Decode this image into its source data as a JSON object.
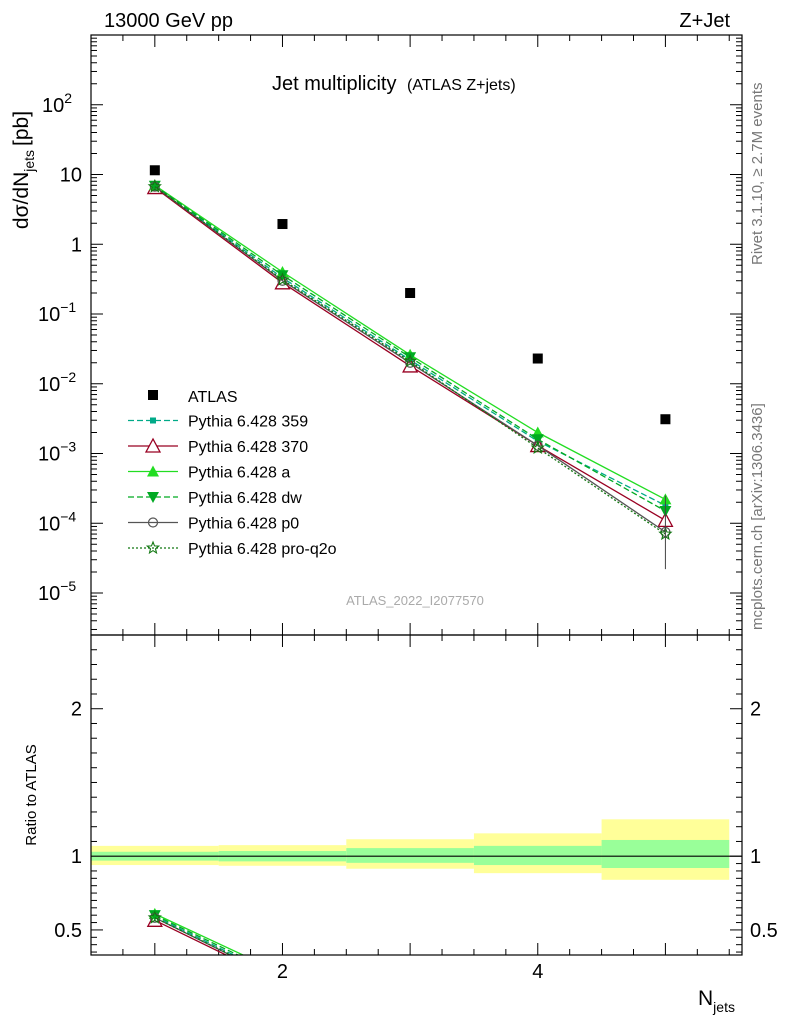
{
  "header": {
    "left": "13000 GeV pp",
    "right": "Z+Jet"
  },
  "side_text": {
    "rivet": "Rivet 3.1.10, ≥ 2.7M events",
    "mcplots": "mcplots.cern.ch [arXiv:1306.3436]"
  },
  "chart_data": {
    "type": "scatter",
    "title": "Jet multiplicity",
    "subtitle": "(ATLAS Z+jets)",
    "analysis_id": "ATLAS_2022_I2077570",
    "xlabel": "N",
    "xlabel_sub": "jets",
    "ylabel": "dσ/dN",
    "ylabel_sub": "jets",
    "ylabel_unit": "[pb]",
    "ratio_ylabel": "Ratio to ATLAS",
    "xlim": [
      0.5,
      5.6
    ],
    "ylim": [
      2.5e-06,
      1000
    ],
    "y_scale": "log",
    "ratio_ylim": [
      0.33,
      2.5
    ],
    "x_ticks": [
      2,
      4
    ],
    "x_tick_labels": [
      "2",
      "4"
    ],
    "y_tick_labels": [
      {
        "value": 100,
        "mant": "10",
        "exp": "2"
      },
      {
        "value": 10,
        "mant": "10",
        "exp": ""
      },
      {
        "value": 1,
        "mant": "1",
        "exp": ""
      },
      {
        "value": 0.1,
        "mant": "10",
        "exp": "−1"
      },
      {
        "value": 0.01,
        "mant": "10",
        "exp": "−2"
      },
      {
        "value": 0.001,
        "mant": "10",
        "exp": "−3"
      },
      {
        "value": 0.0001,
        "mant": "10",
        "exp": "−4"
      },
      {
        "value": 1e-05,
        "mant": "10",
        "exp": "−5"
      }
    ],
    "ratio_ticks": [
      {
        "value": 0.5,
        "label": "0.5"
      },
      {
        "value": 1,
        "label": "1"
      },
      {
        "value": 2,
        "label": "2"
      }
    ],
    "legend_position": "left, below middle",
    "data": {
      "name": "ATLAS",
      "x": [
        1,
        2,
        3,
        4,
        5
      ],
      "y": [
        11.5,
        1.95,
        0.2,
        0.023,
        0.0031
      ]
    },
    "ratio_bands": {
      "x_edges": [
        [
          0.5,
          1.5
        ],
        [
          1.5,
          2.5
        ],
        [
          2.5,
          3.5
        ],
        [
          3.5,
          4.5
        ],
        [
          4.5,
          5.5
        ]
      ],
      "inner": [
        [
          0.97,
          1.03
        ],
        [
          0.965,
          1.035
        ],
        [
          0.955,
          1.055
        ],
        [
          0.94,
          1.07
        ],
        [
          0.92,
          1.11
        ]
      ],
      "outer": [
        [
          0.94,
          1.07
        ],
        [
          0.935,
          1.075
        ],
        [
          0.915,
          1.115
        ],
        [
          0.885,
          1.155
        ],
        [
          0.84,
          1.25
        ]
      ]
    },
    "series": [
      {
        "name": "Pythia 6.428 359",
        "color": "#00aa88",
        "dash": "6,3",
        "marker": "square-small",
        "x": [
          1,
          2,
          3,
          4,
          5
        ],
        "y": [
          6.8,
          0.33,
          0.022,
          0.0015,
          0.00018
        ]
      },
      {
        "name": "Pythia 6.428 370",
        "color": "#990022",
        "dash": "",
        "marker": "triangle-open",
        "x": [
          1,
          2,
          3,
          4,
          5
        ],
        "y": [
          6.5,
          0.28,
          0.018,
          0.0013,
          0.00011
        ]
      },
      {
        "name": "Pythia 6.428 a",
        "color": "#22dd22",
        "dash": "",
        "marker": "triangle",
        "x": [
          1,
          2,
          3,
          4,
          5
        ],
        "y": [
          7.0,
          0.4,
          0.026,
          0.002,
          0.00022
        ]
      },
      {
        "name": "Pythia 6.428 dw",
        "color": "#00aa22",
        "dash": "6,3",
        "marker": "triangle-down",
        "x": [
          1,
          2,
          3,
          4,
          5
        ],
        "y": [
          6.9,
          0.36,
          0.024,
          0.0016,
          0.00015
        ]
      },
      {
        "name": "Pythia 6.428 p0",
        "color": "#555555",
        "dash": "",
        "marker": "circle-open",
        "x": [
          1,
          2,
          3,
          4,
          5
        ],
        "y": [
          6.7,
          0.3,
          0.02,
          0.0013,
          7.5e-05
        ]
      },
      {
        "name": "Pythia 6.428 pro-q2o",
        "color": "#117711",
        "dash": "2,2",
        "marker": "star-open",
        "x": [
          1,
          2,
          3,
          4,
          5
        ],
        "y": [
          6.7,
          0.31,
          0.021,
          0.0012,
          7e-05
        ]
      }
    ]
  }
}
